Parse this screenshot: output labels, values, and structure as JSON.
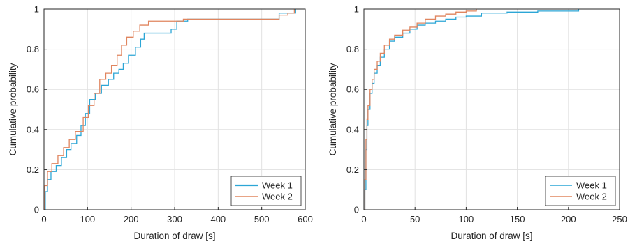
{
  "colors": {
    "week1": "#2ca6d6",
    "week2": "#e0855f",
    "grid": "#e1e1e1",
    "axis": "#262626"
  },
  "chart_data": [
    {
      "type": "line",
      "step": true,
      "xlabel": "Duration of draw [s]",
      "ylabel": "Cumulative probability",
      "xlim": [
        0,
        600
      ],
      "ylim": [
        0,
        1
      ],
      "xticks": [
        "0",
        "100",
        "200",
        "300",
        "400",
        "500",
        "600"
      ],
      "yticks": [
        "0",
        "0.2",
        "0.4",
        "0.6",
        "0.8",
        "1"
      ],
      "grid": true,
      "legend_position": "bottom-right",
      "series": [
        {
          "name": "Week 1",
          "color": "#2ca6d6",
          "points": [
            [
              0,
              0
            ],
            [
              3,
              0.09
            ],
            [
              8,
              0.15
            ],
            [
              16,
              0.19
            ],
            [
              28,
              0.22
            ],
            [
              40,
              0.26
            ],
            [
              52,
              0.3
            ],
            [
              62,
              0.33
            ],
            [
              75,
              0.37
            ],
            [
              85,
              0.42
            ],
            [
              95,
              0.48
            ],
            [
              105,
              0.55
            ],
            [
              118,
              0.58
            ],
            [
              132,
              0.62
            ],
            [
              148,
              0.65
            ],
            [
              160,
              0.68
            ],
            [
              172,
              0.7
            ],
            [
              182,
              0.73
            ],
            [
              194,
              0.77
            ],
            [
              210,
              0.81
            ],
            [
              222,
              0.85
            ],
            [
              230,
              0.88
            ],
            [
              278,
              0.88
            ],
            [
              292,
              0.9
            ],
            [
              305,
              0.94
            ],
            [
              330,
              0.95
            ],
            [
              520,
              0.95
            ],
            [
              540,
              0.98
            ],
            [
              578,
              1.0
            ]
          ]
        },
        {
          "name": "Week 2",
          "color": "#e0855f",
          "points": [
            [
              0,
              0
            ],
            [
              2,
              0.12
            ],
            [
              8,
              0.19
            ],
            [
              18,
              0.23
            ],
            [
              32,
              0.27
            ],
            [
              45,
              0.31
            ],
            [
              58,
              0.35
            ],
            [
              72,
              0.39
            ],
            [
              90,
              0.46
            ],
            [
              102,
              0.52
            ],
            [
              115,
              0.58
            ],
            [
              128,
              0.65
            ],
            [
              142,
              0.68
            ],
            [
              155,
              0.72
            ],
            [
              168,
              0.77
            ],
            [
              178,
              0.82
            ],
            [
              190,
              0.86
            ],
            [
              205,
              0.89
            ],
            [
              220,
              0.92
            ],
            [
              240,
              0.94
            ],
            [
              320,
              0.95
            ],
            [
              540,
              0.97
            ],
            [
              560,
              0.98
            ],
            [
              575,
              1.0
            ]
          ]
        }
      ]
    },
    {
      "type": "line",
      "step": true,
      "xlabel": "Duration of draw [s]",
      "ylabel": "Cumulative probability",
      "xlim": [
        0,
        250
      ],
      "ylim": [
        0,
        1
      ],
      "xticks": [
        "0",
        "50",
        "100",
        "150",
        "200",
        "250"
      ],
      "yticks": [
        "0",
        "0.2",
        "0.4",
        "0.6",
        "0.8",
        "1"
      ],
      "grid": true,
      "legend_position": "bottom-right",
      "series": [
        {
          "name": "Week 1",
          "color": "#2ca6d6",
          "points": [
            [
              0,
              0
            ],
            [
              1,
              0.1
            ],
            [
              2,
              0.3
            ],
            [
              3,
              0.42
            ],
            [
              4,
              0.5
            ],
            [
              6,
              0.58
            ],
            [
              8,
              0.63
            ],
            [
              10,
              0.68
            ],
            [
              13,
              0.72
            ],
            [
              16,
              0.76
            ],
            [
              20,
              0.8
            ],
            [
              25,
              0.84
            ],
            [
              30,
              0.86
            ],
            [
              38,
              0.88
            ],
            [
              45,
              0.9
            ],
            [
              52,
              0.92
            ],
            [
              60,
              0.93
            ],
            [
              70,
              0.94
            ],
            [
              80,
              0.95
            ],
            [
              90,
              0.96
            ],
            [
              100,
              0.965
            ],
            [
              115,
              0.98
            ],
            [
              140,
              0.985
            ],
            [
              170,
              0.99
            ],
            [
              200,
              0.99
            ],
            [
              210,
              1.0
            ]
          ]
        },
        {
          "name": "Week 2",
          "color": "#e0855f",
          "points": [
            [
              0,
              0
            ],
            [
              1,
              0.15
            ],
            [
              2,
              0.35
            ],
            [
              3,
              0.45
            ],
            [
              4,
              0.52
            ],
            [
              6,
              0.6
            ],
            [
              8,
              0.65
            ],
            [
              10,
              0.7
            ],
            [
              13,
              0.74
            ],
            [
              16,
              0.78
            ],
            [
              20,
              0.82
            ],
            [
              25,
              0.85
            ],
            [
              30,
              0.87
            ],
            [
              38,
              0.895
            ],
            [
              45,
              0.91
            ],
            [
              52,
              0.93
            ],
            [
              60,
              0.95
            ],
            [
              70,
              0.965
            ],
            [
              80,
              0.975
            ],
            [
              90,
              0.985
            ],
            [
              100,
              0.99
            ],
            [
              110,
              1.0
            ]
          ]
        }
      ]
    }
  ]
}
